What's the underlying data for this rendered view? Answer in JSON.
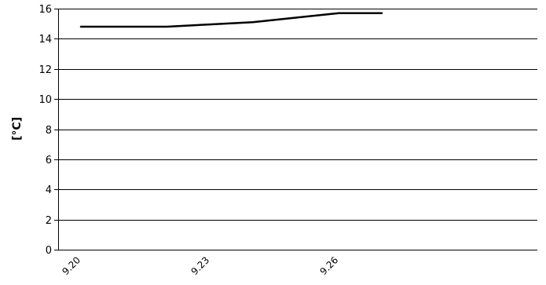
{
  "chart_data": {
    "type": "line",
    "title": "",
    "xlabel": "",
    "ylabel": "[°C]",
    "ylim": [
      0,
      16
    ],
    "yticks": [
      0,
      2,
      4,
      6,
      8,
      10,
      12,
      14,
      16
    ],
    "x": [
      "9.20",
      "9.21",
      "9.22",
      "9.23",
      "9.24",
      "9.25",
      "9.26",
      "9.27"
    ],
    "xtick_labels": [
      "9.20",
      "9.23",
      "9.26"
    ],
    "grid": true,
    "legend": "none",
    "series": [
      {
        "values": [
          14.8,
          14.8,
          14.8,
          14.95,
          15.1,
          15.4,
          15.7,
          15.7
        ],
        "color": "#000000"
      }
    ]
  }
}
